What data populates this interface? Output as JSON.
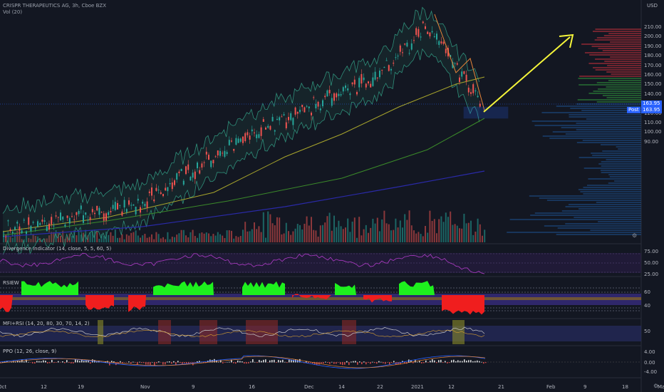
{
  "header": {
    "symbol_line": "CRISPR THERAPEUTICS AG, 3h, Cboe BZX",
    "vol_line": "Vol (20)"
  },
  "price_axis": {
    "currency": "USD",
    "ticks": [
      "210.00",
      "200.00",
      "190.00",
      "180.00",
      "170.00",
      "160.00",
      "150.00",
      "140.00",
      "130.00",
      "120.00",
      "110.00",
      "100.00",
      "90.00"
    ],
    "last_price": "163.95",
    "post_label": "Post",
    "post_price": "163.95"
  },
  "panes": {
    "divergence": {
      "label": "Divergence Indicator (14, close, 5, 5, 60, 5)",
      "ticks": [
        "75.00",
        "50.00",
        "25.00"
      ]
    },
    "rsiew": {
      "label": "RSIEW",
      "ticks": [
        "60",
        "40"
      ]
    },
    "mfi": {
      "label": "MFI+RSI (14, 20, 80, 30, 70, 14, 2)",
      "ticks": [
        "50"
      ]
    },
    "ppo": {
      "label": "PPO (12, 26, close, 9)",
      "ticks": [
        "4.00",
        "0.00",
        "-4.00"
      ]
    }
  },
  "time_axis": [
    "Oct",
    "12",
    "19",
    "Nov",
    "9",
    "16",
    "Dec",
    "14",
    "22",
    "2021",
    "12",
    "21",
    "Feb",
    "9",
    "18",
    "Mar"
  ],
  "colors": {
    "background": "#131722",
    "up": "#26a69a",
    "down": "#ef5350",
    "arrow": "#f5f53a",
    "bollinger": "#2f8f7a",
    "ma_blue": "#2a2aa8",
    "ma_green": "#3b8a2a",
    "ma_olive": "#a8a52c",
    "divergence_line": "#b03cc8",
    "rsiew_green": "#1ef01e",
    "rsiew_red": "#f01e1e"
  },
  "icons": [
    "gear-icon",
    "currency-label",
    "settings-icon"
  ]
}
